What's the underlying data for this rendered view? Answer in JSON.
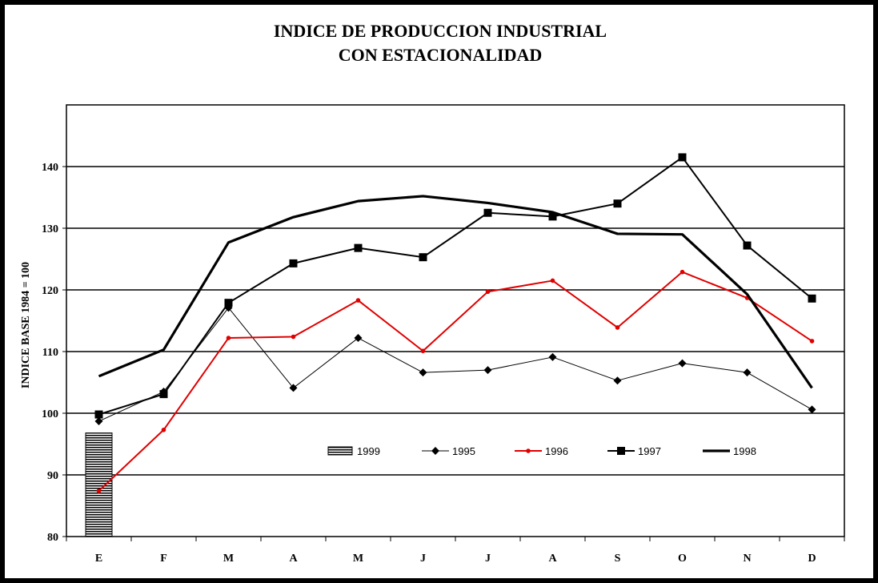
{
  "chart_data": {
    "type": "line",
    "title_lines": [
      "INDICE DE PRODUCCION INDUSTRIAL",
      "CON ESTACIONALIDAD"
    ],
    "ylabel": "INDICE BASE 1984 = 100",
    "xlabel": "",
    "categories": [
      "E",
      "F",
      "M",
      "A",
      "M",
      "J",
      "J",
      "A",
      "S",
      "O",
      "N",
      "D"
    ],
    "ylim": [
      80,
      150
    ],
    "yticks": [
      80,
      90,
      100,
      110,
      120,
      130,
      140
    ],
    "grid": true,
    "legend_position": "inside-lower",
    "series": [
      {
        "name": "1999",
        "kind": "bar",
        "color": "#000000",
        "values": [
          96.8,
          null,
          null,
          null,
          null,
          null,
          null,
          null,
          null,
          null,
          null,
          null
        ]
      },
      {
        "name": "1995",
        "kind": "line",
        "marker": "diamond",
        "color": "#000000",
        "values": [
          98.7,
          103.5,
          117.1,
          104.1,
          112.2,
          106.6,
          107.0,
          109.1,
          105.3,
          108.1,
          106.6,
          100.6
        ]
      },
      {
        "name": "1996",
        "kind": "line",
        "marker": "circle",
        "color": "#e00000",
        "values": [
          87.4,
          97.3,
          112.2,
          112.4,
          118.3,
          110.1,
          119.7,
          121.5,
          113.9,
          122.9,
          118.7,
          111.7
        ]
      },
      {
        "name": "1997",
        "kind": "line",
        "marker": "square",
        "color": "#000000",
        "values": [
          99.8,
          103.1,
          117.9,
          124.3,
          126.8,
          125.3,
          132.5,
          131.9,
          134.0,
          141.5,
          127.2,
          118.6
        ]
      },
      {
        "name": "1998",
        "kind": "line",
        "marker": "none",
        "color": "#000000",
        "values": [
          106.0,
          110.3,
          127.7,
          131.8,
          134.4,
          135.2,
          134.1,
          132.6,
          129.1,
          129.0,
          119.3,
          104.1
        ]
      }
    ]
  }
}
